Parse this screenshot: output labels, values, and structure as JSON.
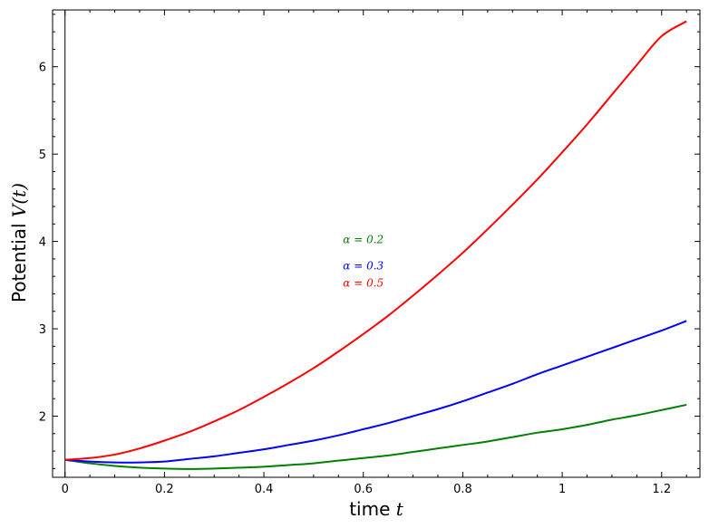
{
  "chart_data": {
    "type": "line",
    "xlabel": "time",
    "xlabel_var": "t",
    "ylabel": "Potential",
    "ylabel_var": "V(t)",
    "xlim": [
      -0.025,
      1.277
    ],
    "ylim": [
      1.3,
      6.65
    ],
    "xticks": [
      0,
      0.2,
      0.4,
      0.6,
      0.8,
      1,
      1.2
    ],
    "yticks": [
      2,
      3,
      4,
      5,
      6
    ],
    "grid": false,
    "series": [
      {
        "name": "α=0.2",
        "color": "#008000",
        "x": [
          0,
          0.05,
          0.1,
          0.15,
          0.2,
          0.25,
          0.3,
          0.35,
          0.4,
          0.45,
          0.5,
          0.55,
          0.6,
          0.65,
          0.7,
          0.75,
          0.8,
          0.85,
          0.9,
          0.95,
          1.0,
          1.05,
          1.1,
          1.15,
          1.2,
          1.25
        ],
        "y": [
          1.5,
          1.46,
          1.43,
          1.41,
          1.4,
          1.395,
          1.4,
          1.41,
          1.42,
          1.44,
          1.46,
          1.49,
          1.52,
          1.55,
          1.59,
          1.63,
          1.67,
          1.71,
          1.76,
          1.81,
          1.85,
          1.9,
          1.96,
          2.01,
          2.07,
          2.13
        ]
      },
      {
        "name": "α=0.3",
        "color": "#0000ff",
        "x": [
          0,
          0.05,
          0.1,
          0.15,
          0.2,
          0.25,
          0.3,
          0.35,
          0.4,
          0.45,
          0.5,
          0.55,
          0.6,
          0.65,
          0.7,
          0.75,
          0.8,
          0.85,
          0.9,
          0.95,
          1.0,
          1.05,
          1.1,
          1.15,
          1.2,
          1.25
        ],
        "y": [
          1.5,
          1.48,
          1.47,
          1.47,
          1.48,
          1.51,
          1.54,
          1.58,
          1.62,
          1.67,
          1.72,
          1.78,
          1.85,
          1.92,
          2.0,
          2.08,
          2.17,
          2.27,
          2.37,
          2.48,
          2.58,
          2.68,
          2.78,
          2.88,
          2.98,
          3.09
        ]
      },
      {
        "name": "α=0.5",
        "color": "#ff0000",
        "x": [
          0,
          0.05,
          0.1,
          0.15,
          0.2,
          0.25,
          0.3,
          0.35,
          0.4,
          0.45,
          0.5,
          0.55,
          0.6,
          0.65,
          0.7,
          0.75,
          0.8,
          0.85,
          0.9,
          0.95,
          1.0,
          1.05,
          1.1,
          1.15,
          1.2,
          1.25
        ],
        "y": [
          1.5,
          1.52,
          1.56,
          1.63,
          1.72,
          1.82,
          1.94,
          2.07,
          2.22,
          2.38,
          2.55,
          2.74,
          2.94,
          3.15,
          3.38,
          3.62,
          3.87,
          4.14,
          4.42,
          4.71,
          5.02,
          5.34,
          5.68,
          6.02,
          6.35,
          6.52
        ]
      }
    ],
    "annotations": [
      {
        "text": "α = 0.2",
        "x": 0.6,
        "y": 3.98,
        "color": "#008000"
      },
      {
        "text": "α = 0.3",
        "x": 0.6,
        "y": 3.68,
        "color": "#0000ff"
      },
      {
        "text": "α = 0.5",
        "x": 0.6,
        "y": 3.48,
        "color": "#ff0000"
      }
    ]
  }
}
